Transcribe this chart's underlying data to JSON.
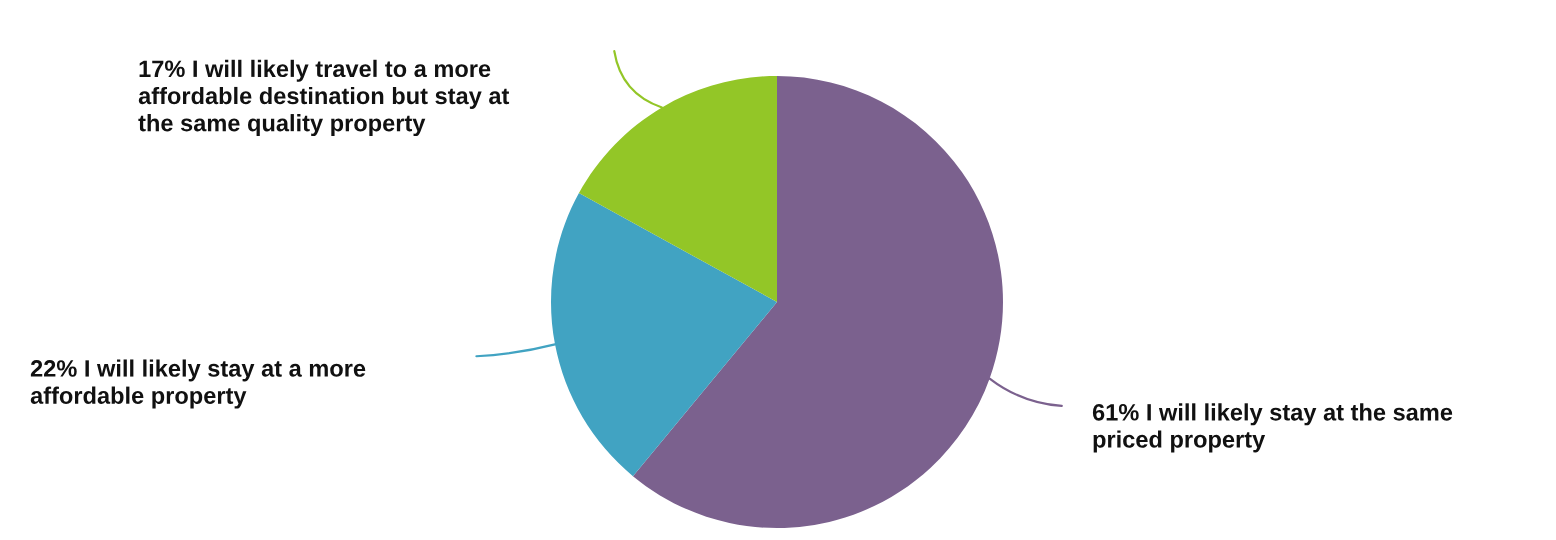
{
  "chart_data": {
    "type": "pie",
    "categories": [
      "I will likely stay at the same\npriced property",
      "I will likely stay at a more\naffordable property",
      "I will likely travel to a more\naffordable destination but stay at\nthe same quality property"
    ],
    "values": [
      61,
      22,
      17
    ],
    "value_labels": [
      "61%",
      "22%",
      "17%"
    ],
    "colors": [
      "#7b618e",
      "#41a3c2",
      "#93c627"
    ]
  }
}
